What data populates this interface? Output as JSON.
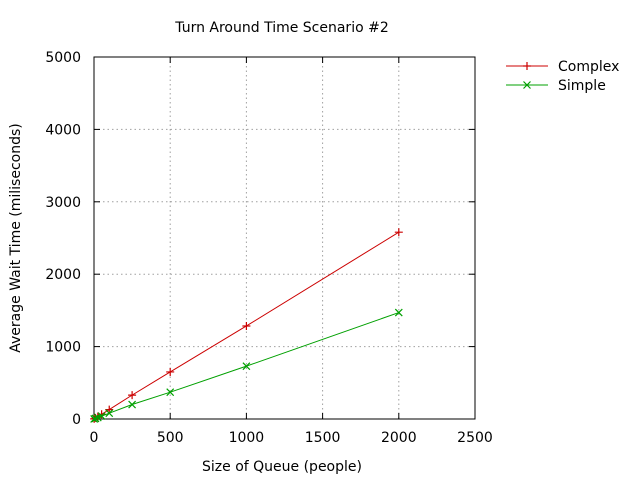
{
  "chart_data": {
    "type": "line",
    "title": "Turn Around Time Scenario #2",
    "xlabel": "Size of Queue (people)",
    "ylabel": "Average Wait Time (miliseconds)",
    "xlim": [
      0,
      2500
    ],
    "ylim": [
      0,
      5000
    ],
    "xticks": [
      "0",
      "500",
      "1000",
      "1500",
      "2000",
      "2500"
    ],
    "yticks": [
      "0",
      "1000",
      "2000",
      "3000",
      "4000",
      "5000"
    ],
    "xtick_values": [
      0,
      500,
      1000,
      1500,
      2000,
      2500
    ],
    "ytick_values": [
      0,
      1000,
      2000,
      3000,
      4000,
      5000
    ],
    "grid": true,
    "legend_position": "outside-top-right",
    "series": [
      {
        "name": "Complex",
        "color": "#cc0000",
        "marker": "plus",
        "x": [
          1,
          10,
          25,
          50,
          100,
          250,
          500,
          1000,
          2000
        ],
        "y": [
          2,
          15,
          35,
          65,
          130,
          330,
          650,
          1285,
          2580
        ]
      },
      {
        "name": "Simple",
        "color": "#00a000",
        "marker": "cross",
        "x": [
          1,
          10,
          25,
          50,
          100,
          250,
          500,
          1000,
          2000
        ],
        "y": [
          1,
          8,
          20,
          40,
          80,
          200,
          370,
          730,
          1470
        ]
      }
    ]
  }
}
